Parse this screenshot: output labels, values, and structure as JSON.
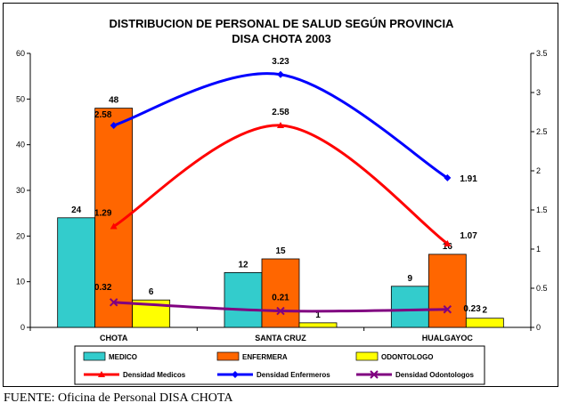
{
  "chart_data": {
    "type": "bar",
    "title": "DISTRIBUCION  DE PERSONAL DE SALUD SEGÚN PROVINCIA",
    "subtitle": "DISA CHOTA 2003",
    "categories": [
      "CHOTA",
      "SANTA CRUZ",
      "HUALGAYOC"
    ],
    "ylim": [
      0,
      60
    ],
    "y2lim": [
      0,
      3.5
    ],
    "yticks": [
      "0",
      "10",
      "20",
      "30",
      "40",
      "50",
      "60"
    ],
    "y2ticks": [
      "0",
      "0.5",
      "1",
      "1.5",
      "2",
      "2.5",
      "3",
      "3.5"
    ],
    "grid": false,
    "legend_position": "bottom",
    "series": [
      {
        "name": "MEDICO",
        "kind": "bar",
        "axis": "left",
        "color": "#33CCCC",
        "values": [
          24,
          12,
          9
        ],
        "labels": [
          "24",
          "12",
          "9"
        ]
      },
      {
        "name": "ENFERMERA",
        "kind": "bar",
        "axis": "left",
        "color": "#FF6600",
        "values": [
          48,
          15,
          16
        ],
        "labels": [
          "48",
          "15",
          "16"
        ]
      },
      {
        "name": "ODONTOLOGO",
        "kind": "bar",
        "axis": "left",
        "color": "#FFFF00",
        "values": [
          6,
          1,
          2
        ],
        "labels": [
          "6",
          "1",
          "2"
        ]
      },
      {
        "name": "Densidad Medicos",
        "kind": "line",
        "axis": "right",
        "color": "#FF0000",
        "marker": "triangle",
        "values": [
          1.29,
          2.58,
          1.07
        ],
        "labels": [
          "1.29",
          "2.58",
          "1.07"
        ]
      },
      {
        "name": "Densidad  Enfermeros",
        "kind": "line",
        "axis": "right",
        "color": "#0000FF",
        "marker": "diamond",
        "values": [
          2.58,
          3.23,
          1.91
        ],
        "labels": [
          "2.58",
          "3.23",
          "1.91"
        ]
      },
      {
        "name": "Densidad Odontologos",
        "kind": "line",
        "axis": "right",
        "color": "#800080",
        "marker": "x",
        "values": [
          0.32,
          0.21,
          0.23
        ],
        "labels": [
          "0.32",
          "0.21",
          "0.23"
        ]
      }
    ]
  },
  "source": "FUENTE: Oficina de Personal DISA CHOTA"
}
